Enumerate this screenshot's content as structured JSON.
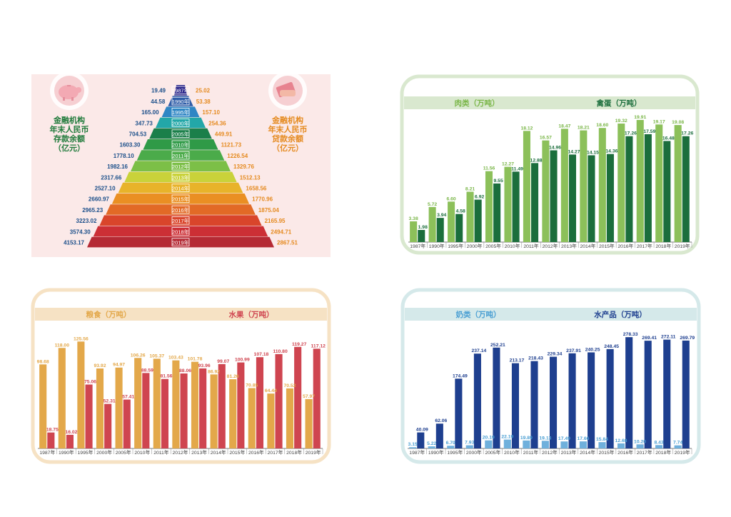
{
  "pyramid": {
    "left_label": [
      "金融机构",
      "年末人民币",
      "存款余额",
      "（亿元）"
    ],
    "right_label": [
      "金融机构",
      "年末人民币",
      "贷款余额",
      "（亿元）"
    ],
    "colors": {
      "bg": "#fbe9e8",
      "left_text": "#1f7a3a",
      "right_text": "#e58a1f",
      "value_left": "#1b4f8a",
      "value_right": "#e58a1f"
    }
  },
  "meat_panel": {
    "series_labels": [
      "肉类（万吨）",
      "禽蛋（万吨）"
    ],
    "colors": {
      "frame": "#d9e8cf",
      "series1": "#8cc05a",
      "series2": "#1b6e3c",
      "label1": "#7ab648",
      "label2": "#1b6e3c"
    }
  },
  "grain_panel": {
    "series_labels": [
      "粮食（万吨）",
      "水果（万吨）"
    ],
    "colors": {
      "frame": "#f6e2c4",
      "series1": "#e3a84a",
      "series2": "#cf4550",
      "label1": "#e3a84a",
      "label2": "#cf4550"
    }
  },
  "milk_panel": {
    "series_labels": [
      "奶类（万吨）",
      "水产品（万吨）"
    ],
    "colors": {
      "frame": "#d5e9ea",
      "series1": "#6fb0dc",
      "series2": "#1e3f8f",
      "label1": "#4a9fd3",
      "label2": "#1e3f8f"
    }
  },
  "chart_data": [
    {
      "type": "bar",
      "name_note": "",
      "categories": [
        "1987年",
        "1990年",
        "1995年",
        "2000年",
        "2005年",
        "2010年",
        "2011年",
        "2012年",
        "2013年",
        "2014年",
        "2015年",
        "2016年",
        "2017年",
        "2018年",
        "2019年"
      ],
      "series": [
        {
          "name": "金融机构年末人民币存款余额（亿元）",
          "values": [
            19.49,
            44.58,
            165.0,
            347.73,
            704.53,
            1603.3,
            1778.1,
            1982.16,
            2317.66,
            2527.1,
            2660.97,
            2965.23,
            3223.02,
            3574.3,
            4153.17
          ]
        },
        {
          "name": "金融机构年末人民币贷款余额（亿元）",
          "values": [
            25.02,
            53.38,
            157.1,
            254.36,
            449.91,
            1121.73,
            1226.54,
            1329.76,
            1512.13,
            1658.56,
            1770.96,
            1875.04,
            2165.95,
            2494.71,
            2867.51
          ]
        }
      ],
      "value_labels_left": [
        "19.49",
        "44.58",
        "165.00",
        "347.73",
        "704.53",
        "1603.30",
        "1778.10",
        "1982.16",
        "2317.66",
        "2527.10",
        "2660.97",
        "2965.23",
        "3223.02",
        "3574.30",
        "4153.17"
      ],
      "value_labels_right": [
        "25.02",
        "53.38",
        "157.10",
        "254.36",
        "449.91",
        "1121.73",
        "1226.54",
        "1329.76",
        "1512.13",
        "1658.56",
        "1770.96",
        "1875.04",
        "2165.95",
        "2494.71",
        "2867.51"
      ],
      "bar_colors": [
        "#2e2a8c",
        "#2f5da8",
        "#2f86c4",
        "#23a7a8",
        "#1b7f4a",
        "#2f9a47",
        "#4bab4a",
        "#7cbf47",
        "#c9d23a",
        "#e8b32a",
        "#ea8f23",
        "#e26a26",
        "#d9452b",
        "#cc2f35",
        "#b52a34"
      ],
      "title": "",
      "xlabel": "",
      "ylabel": ""
    },
    {
      "type": "bar",
      "categories": [
        "1987年",
        "1990年",
        "1995年",
        "2000年",
        "2005年",
        "2010年",
        "2011年",
        "2012年",
        "2013年",
        "2014年",
        "2015年",
        "2016年",
        "2017年",
        "2018年",
        "2019年"
      ],
      "series": [
        {
          "name": "肉类（万吨）",
          "values": [
            3.38,
            5.72,
            6.6,
            8.21,
            11.56,
            12.27,
            18.12,
            16.57,
            18.47,
            18.21,
            18.6,
            19.32,
            19.91,
            19.17,
            19.08
          ]
        },
        {
          "name": "禽蛋（万吨）",
          "values": [
            1.98,
            3.94,
            4.58,
            6.92,
            9.55,
            11.49,
            12.88,
            14.96,
            14.27,
            14.15,
            14.36,
            17.26,
            17.59,
            16.48,
            17.26
          ]
        }
      ],
      "labels1": [
        "3.38",
        "5.72",
        "6.60",
        "8.21",
        "11.56",
        "12.27",
        "18.12",
        "16.57",
        "18.47",
        "18.21",
        "18.60",
        "19.32",
        "19.91",
        "19.17",
        "19.08"
      ],
      "labels2": [
        "1.98",
        "3.94",
        "4.58",
        "6.92",
        "9.55",
        "11.49",
        "12.88",
        "14.96",
        "14.27",
        "14.15",
        "14.36",
        "17.26",
        "17.59",
        "16.48",
        "17.26"
      ],
      "ylim": [
        0,
        22
      ],
      "title": "",
      "xlabel": "",
      "ylabel": ""
    },
    {
      "type": "bar",
      "categories": [
        "1987年",
        "1990年",
        "1995年",
        "2000年",
        "2005年",
        "2010年",
        "2011年",
        "2012年",
        "2013年",
        "2014年",
        "2015年",
        "2016年",
        "2017年",
        "2018年",
        "2019年"
      ],
      "series": [
        {
          "name": "粮食（万吨）",
          "values": [
            98.68,
            118.0,
            125.56,
            93.92,
            94.97,
            106.26,
            105.37,
            103.43,
            101.78,
            86.92,
            81.26,
            70.85,
            64.44,
            70.52,
            57.97
          ]
        },
        {
          "name": "水果（万吨）",
          "values": [
            18.75,
            16.02,
            75.06,
            52.31,
            57.41,
            88.59,
            81.56,
            88.06,
            93.96,
            99.07,
            100.99,
            107.18,
            110.8,
            119.27,
            117.12
          ]
        }
      ],
      "labels1": [
        "98.68",
        "118.00",
        "125.56",
        "93.92",
        "94.97",
        "106.26",
        "105.37",
        "103.43",
        "101.78",
        "86.92",
        "81.26",
        "70.85",
        "64.44",
        "70.52",
        "57.97"
      ],
      "labels2": [
        "18.75",
        "16.02",
        "75.06",
        "52.31",
        "57.41",
        "88.59",
        "81.56",
        "88.06",
        "93.96",
        "99.07",
        "100.99",
        "107.18",
        "110.80",
        "119.27",
        "117.12"
      ],
      "ylim": [
        0,
        135
      ],
      "title": "",
      "xlabel": "",
      "ylabel": ""
    },
    {
      "type": "bar",
      "categories": [
        "1987年",
        "1990年",
        "1995年",
        "2000年",
        "2005年",
        "2010年",
        "2011年",
        "2012年",
        "2013年",
        "2014年",
        "2015年",
        "2016年",
        "2017年",
        "2018年",
        "2019年"
      ],
      "series": [
        {
          "name": "奶类（万吨）",
          "values": [
            3.15,
            5.22,
            6.7,
            7.93,
            20.19,
            22.19,
            19.89,
            19.13,
            17.49,
            17.66,
            15.84,
            12.68,
            10.2,
            8.43,
            7.74
          ]
        },
        {
          "name": "水产品（万吨）",
          "values": [
            40.09,
            62.06,
            174.49,
            237.14,
            252.21,
            213.17,
            218.43,
            229.34,
            237.91,
            240.25,
            248.45,
            278.33,
            269.41,
            272.11,
            269.79
          ]
        }
      ],
      "labels1": [
        "3.15",
        "5.22",
        "6.70",
        "7.93",
        "20.19",
        "22.19",
        "19.89",
        "19.13",
        "17.49",
        "17.66",
        "15.84",
        "12.68",
        "10.20",
        "8.43",
        "7.74"
      ],
      "labels2": [
        "40.09",
        "62.06",
        "174.49",
        "237.14",
        "252.21",
        "213.17",
        "218.43",
        "229.34",
        "237.91",
        "240.25",
        "248.45",
        "278.33",
        "269.41",
        "272.11",
        "269.79"
      ],
      "ylim": [
        0,
        300
      ],
      "title": "",
      "xlabel": "",
      "ylabel": ""
    }
  ]
}
